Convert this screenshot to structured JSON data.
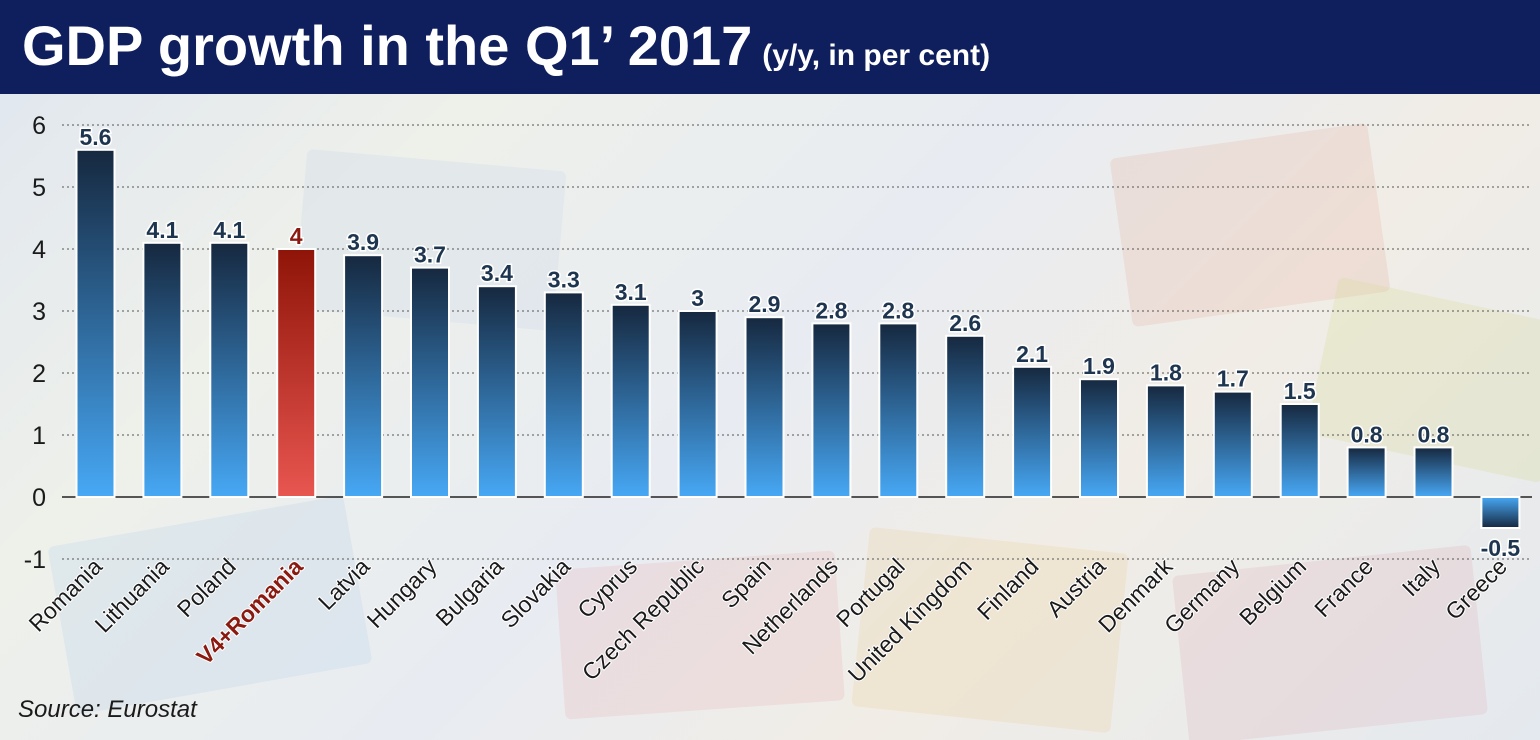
{
  "header": {
    "title": "GDP growth in the Q1’ 2017",
    "subtitle": "(y/y, in per cent)"
  },
  "source": "Source: Eurostat",
  "colors": {
    "bar_top": "#16283f",
    "bar_bottom": "#47a8f5",
    "highlight_top": "#8f1408",
    "highlight_bottom": "#e85650",
    "highlight_label": "#8a1a10",
    "header_bg": "#0f1e5c",
    "value_label": "#1e3550"
  },
  "chart_data": {
    "type": "bar",
    "categories": [
      "Romania",
      "Lithuania",
      "Poland",
      "V4+Romania",
      "Latvia",
      "Hungary",
      "Bulgaria",
      "Slovakia",
      "Cyprus",
      "Czech Republic",
      "Spain",
      "Netherlands",
      "Portugal",
      "United Kingdom",
      "Finland",
      "Austria",
      "Denmark",
      "Germany",
      "Belgium",
      "France",
      "Italy",
      "Greece"
    ],
    "values": [
      5.6,
      4.1,
      4.1,
      4,
      3.9,
      3.7,
      3.4,
      3.3,
      3.1,
      3,
      2.9,
      2.8,
      2.8,
      2.6,
      2.1,
      1.9,
      1.8,
      1.7,
      1.5,
      0.8,
      0.8,
      -0.5
    ],
    "value_labels": [
      "5.6",
      "4.1",
      "4.1",
      "4",
      "3.9",
      "3.7",
      "3.4",
      "3.3",
      "3.1",
      "3",
      "2.9",
      "2.8",
      "2.8",
      "2.6",
      "2.1",
      "1.9",
      "1.8",
      "1.7",
      "1.5",
      "0.8",
      "0.8",
      "-0.5"
    ],
    "highlight": "V4+Romania",
    "ylim": [
      -1,
      6
    ],
    "yticks": [
      "-1",
      "0",
      "1",
      "2",
      "3",
      "4",
      "5",
      "6"
    ],
    "grid": true,
    "xlabel": "",
    "ylabel": ""
  }
}
